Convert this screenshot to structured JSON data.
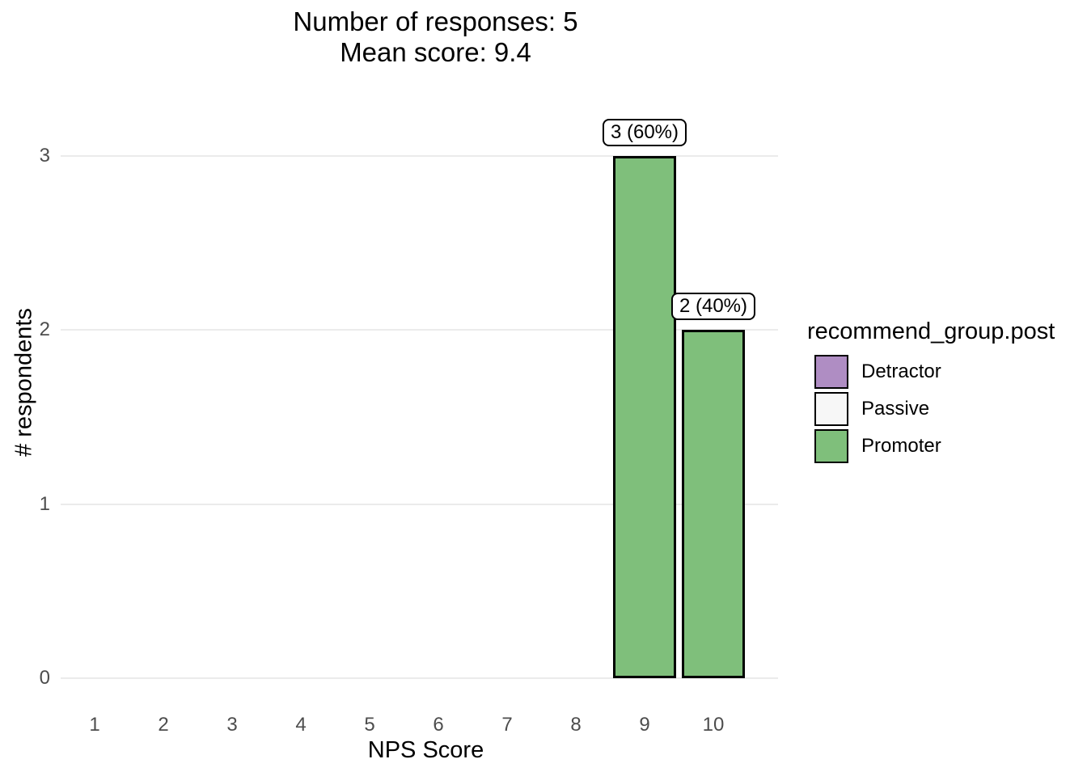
{
  "title": {
    "line1": "Number of responses: 5",
    "line2": "Mean score: 9.4"
  },
  "stats": {
    "n_responses": 5,
    "mean_score": 9.4
  },
  "axes": {
    "x_label": "NPS Score",
    "y_label": "# respondents"
  },
  "legend": {
    "title": "recommend_group.post",
    "position": "right",
    "items": [
      {
        "label": "Detractor",
        "color": "#AF8DC3"
      },
      {
        "label": "Passive",
        "color": "#F7F7F7"
      },
      {
        "label": "Promoter",
        "color": "#7FBF7B"
      }
    ]
  },
  "chart_data": {
    "type": "bar",
    "title": "Number of responses: 5 / Mean score: 9.4",
    "xlabel": "NPS Score",
    "ylabel": "# respondents",
    "categories": [
      "1",
      "2",
      "3",
      "4",
      "5",
      "6",
      "7",
      "8",
      "9",
      "10"
    ],
    "values": [
      0,
      0,
      0,
      0,
      0,
      0,
      0,
      0,
      3,
      2
    ],
    "bar_labels": [
      null,
      null,
      null,
      null,
      null,
      null,
      null,
      null,
      "3 (60%)",
      "2 (40%)"
    ],
    "groups": [
      null,
      null,
      null,
      null,
      null,
      null,
      null,
      null,
      "Promoter",
      "Promoter"
    ],
    "percentages": [
      0,
      0,
      0,
      0,
      0,
      0,
      0,
      0,
      60,
      40
    ],
    "yticks": [
      0,
      1,
      2,
      3
    ],
    "ylim": [
      0,
      3.2
    ],
    "grid": "horizontal major gridlines only",
    "legend_position": "right",
    "bar_fill": "#7FBF7B",
    "bar_stroke": "#000000"
  },
  "colors": {
    "background": "#FFFFFF",
    "gridline": "#EBEBEB",
    "axis_tick_text": "#4D4D4D",
    "text": "#000000",
    "detractor": "#AF8DC3",
    "passive": "#F7F7F7",
    "promoter": "#7FBF7B"
  }
}
